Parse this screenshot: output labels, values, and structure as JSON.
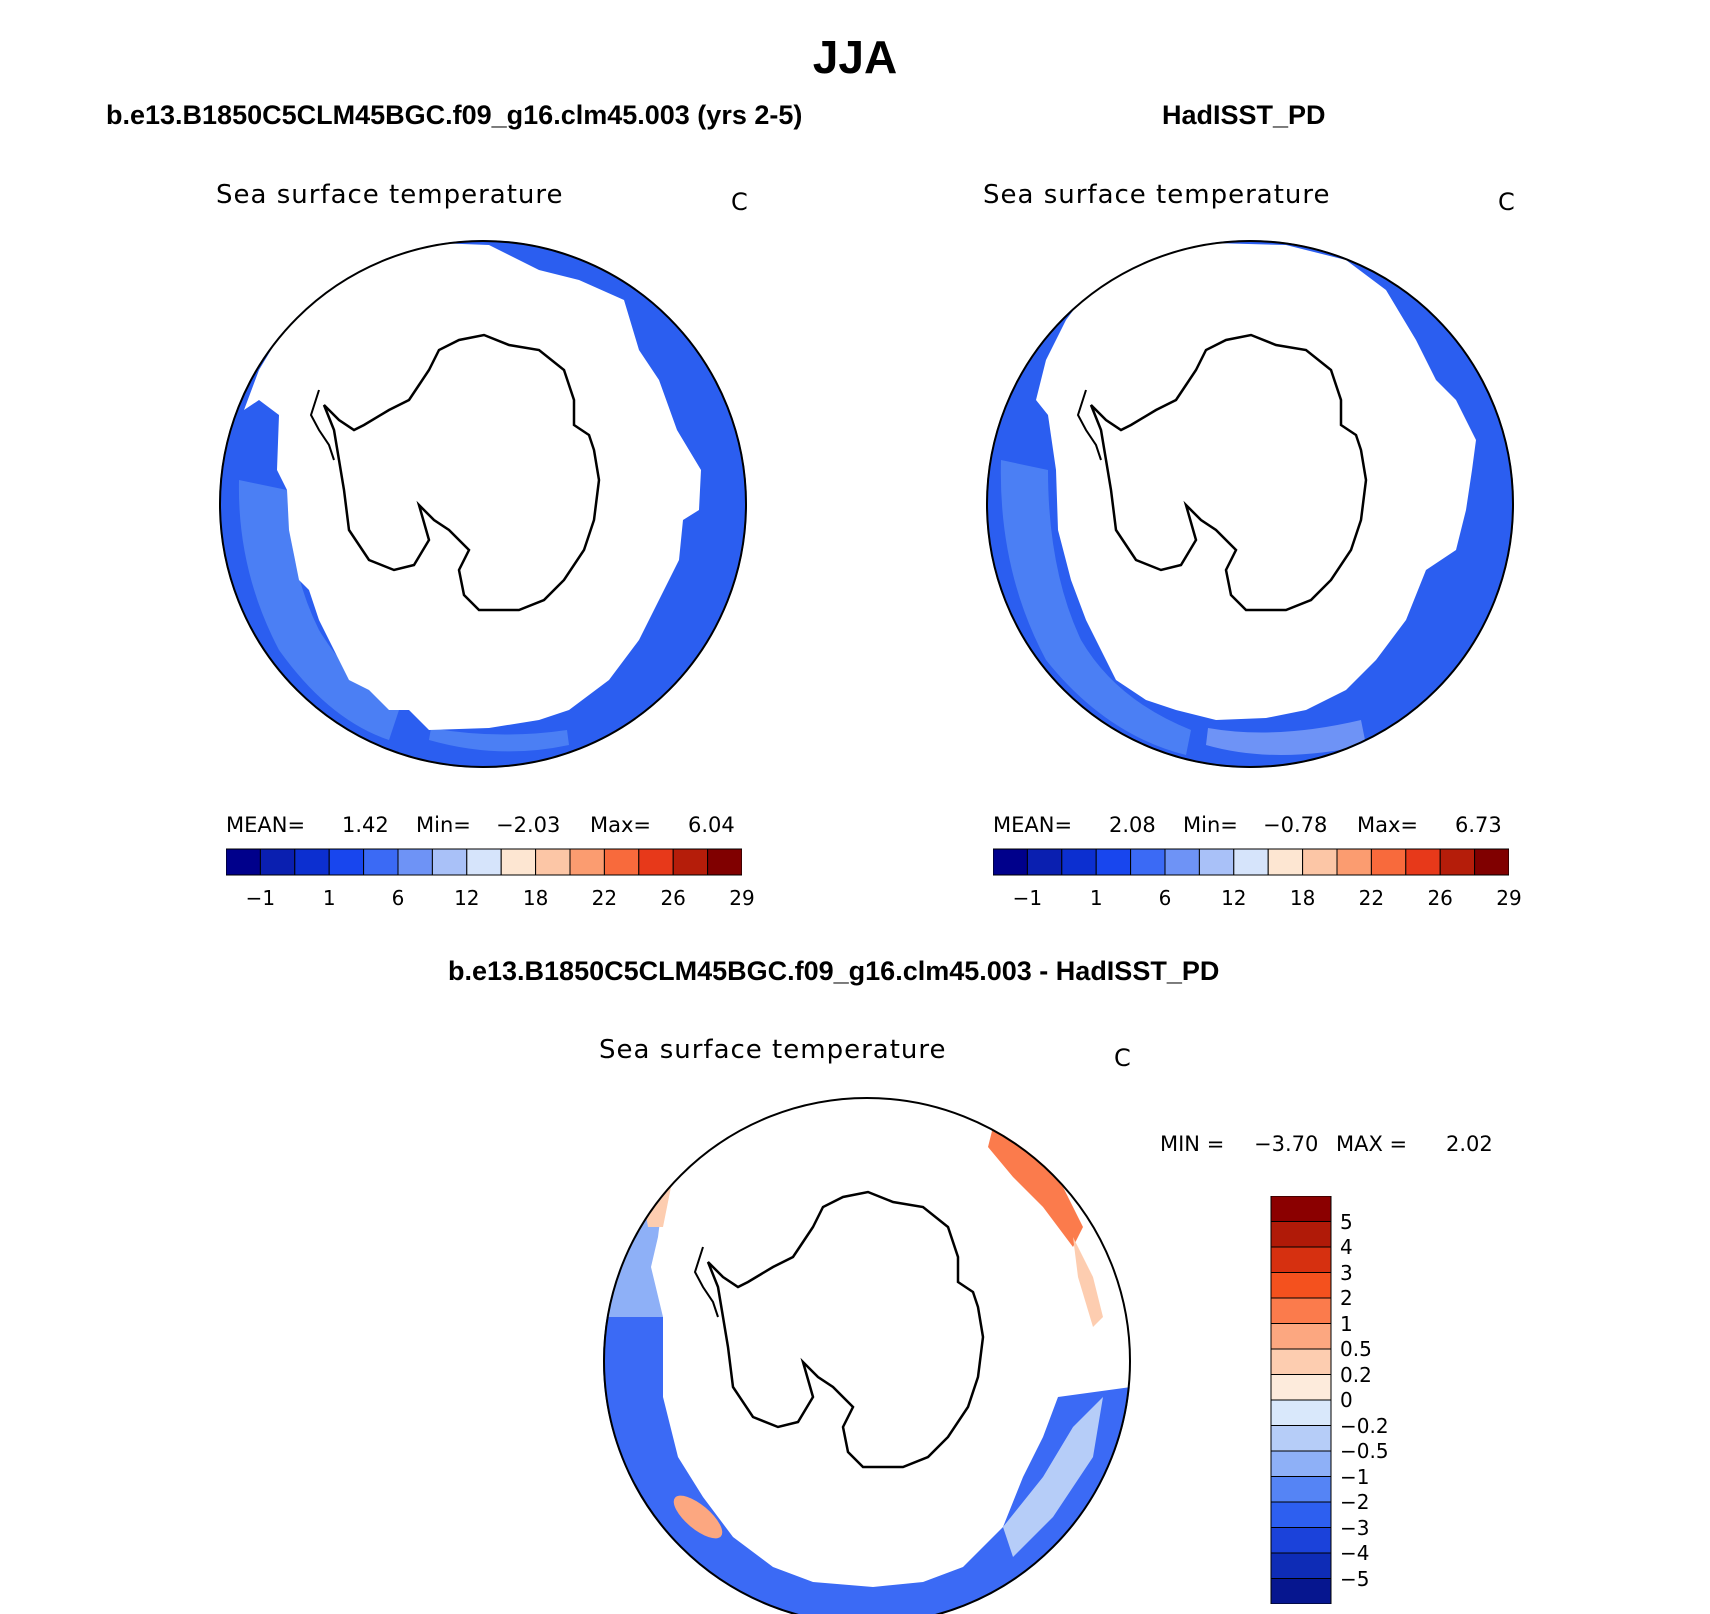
{
  "figure": {
    "title": "JJA",
    "colors": {
      "ocean_deep": "#1a3fe0",
      "ocean_mid": "#2b5ef0",
      "ocean_light": "#4b7ff4",
      "land": "#ffffff",
      "coast": "#000000"
    }
  },
  "panels": [
    {
      "case_title": "b.e13.B1850C5CLM45BGC.f09_g16.clm45.003 (yrs 2-5)",
      "variable": "Sea surface temperature",
      "units": "C",
      "stats": {
        "mean_label": "MEAN=",
        "mean": "1.42",
        "min_label": "Min=",
        "min": "−2.03",
        "max_label": "Max=",
        "max": "6.04"
      }
    },
    {
      "case_title": "HadISST_PD",
      "variable": "Sea surface temperature",
      "units": "C",
      "stats": {
        "mean_label": "MEAN=",
        "mean": "2.08",
        "min_label": "Min=",
        "min": "−0.78",
        "max_label": "Max=",
        "max": "6.73"
      }
    }
  ],
  "abs_colorbar": {
    "colors": [
      "#00008b",
      "#0a1fb0",
      "#0c2fd0",
      "#1846ee",
      "#3b6af5",
      "#6e93f6",
      "#a9c1f8",
      "#d6e4fb",
      "#fde6d2",
      "#fcc6a6",
      "#fb9c70",
      "#f86a3c",
      "#e7391a",
      "#b51d0a",
      "#800000"
    ],
    "labels": [
      "−1",
      "1",
      "6",
      "12",
      "18",
      "22",
      "26",
      "29"
    ]
  },
  "diff_panel": {
    "case_title": "b.e13.B1850C5CLM45BGC.f09_g16.clm45.003 - HadISST_PD",
    "variable": "Sea surface temperature",
    "units": "C",
    "stats": {
      "min_label": "MIN =",
      "min": "−3.70",
      "max_label": "MAX =",
      "max": "2.02"
    }
  },
  "diff_colorbar": {
    "colors": [
      "#8b0000",
      "#b01a08",
      "#d63010",
      "#f4511e",
      "#fb7b4c",
      "#fca780",
      "#fdcdb0",
      "#fdebdc",
      "#d9e8fb",
      "#b6cdf8",
      "#8eb0f7",
      "#5584f5",
      "#2d5ff0",
      "#1b42da",
      "#0e2cb6",
      "#06168f"
    ],
    "labels": [
      "5",
      "4",
      "3",
      "2",
      "1",
      "0.5",
      "0.2",
      "0",
      "−0.2",
      "−0.5",
      "−1",
      "−2",
      "−3",
      "−4",
      "−5"
    ]
  }
}
